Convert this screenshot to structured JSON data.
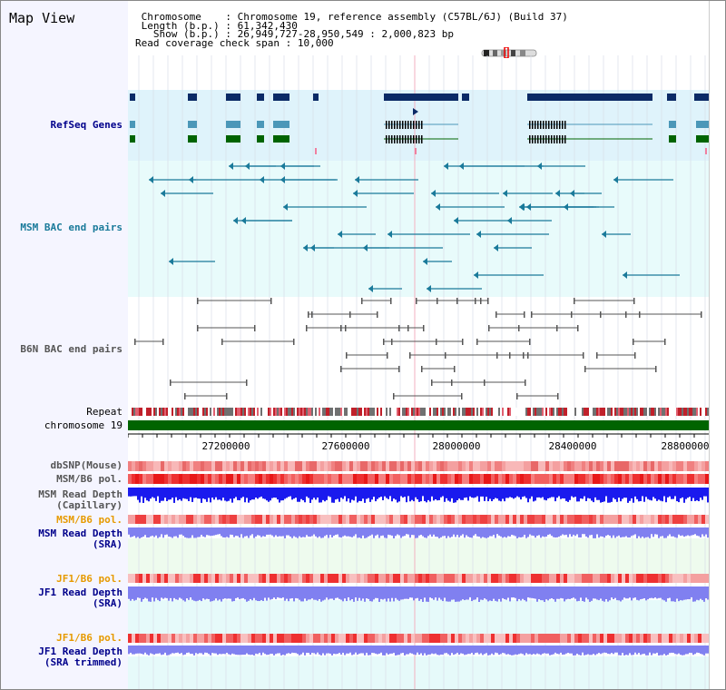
{
  "view": {
    "title": "Map View",
    "chromosome_key": "Chromosome",
    "chromosome_value": "Chromosome 19, reference assembly (C57BL/6J) (Build 37)",
    "length_key": "Length (b.p.)",
    "length_value": "61,342,430",
    "show_key": "Show (b.p.)",
    "show_value": "26,949,727-28,950,549 : 2,000,823 bp",
    "coverage_key": "Read coverage check span",
    "coverage_value": "10,000"
  },
  "track_labels": {
    "refseq": "RefSeq Genes",
    "msm_bac": "MSM BAC end pairs",
    "b6n_bac": "B6N BAC end pairs",
    "repeat": "Repeat",
    "chromosome": "chromosome 19",
    "dbsnp": "dbSNP(Mouse)",
    "msm_b6_pol": "MSM/B6 pol.",
    "msm_depth_cap_1": "MSM Read Depth",
    "msm_depth_cap_2": "(Capillary)",
    "msm_b6_pol_sra": "MSM/B6 pol.",
    "msm_depth_sra_1": "MSM Read Depth",
    "msm_depth_sra_2": "(SRA)",
    "jf1_b6_pol_1": "JF1/B6 pol.",
    "jf1_depth_sra_1": "JF1 Read Depth",
    "jf1_depth_sra_2": "(SRA)",
    "jf1_b6_pol_2": "JF1/B6 pol.",
    "jf1_depth_trim_1": "JF1 Read Depth",
    "jf1_depth_trim_2": "(SRA trimmed)"
  },
  "axis": {
    "ticks": [
      "27200000",
      "27600000",
      "28000000",
      "28400000",
      "28800000"
    ]
  },
  "colors": {
    "refseq_bg": "#dff3fb",
    "msm_bg": "#e8fbfb",
    "gene_dark": "#0b2a66",
    "gene_blue": "#4b97b8",
    "gene_green": "#006400",
    "msm_line": "#1a7a9a",
    "b6n_line": "#555555",
    "chrom_green": "#006400",
    "label_blue": "#00008b",
    "label_orange": "#e69a00",
    "label_teal": "#1a7a9a",
    "depth_blue": "#1a1aee",
    "depth_light": "#8080f0"
  }
}
